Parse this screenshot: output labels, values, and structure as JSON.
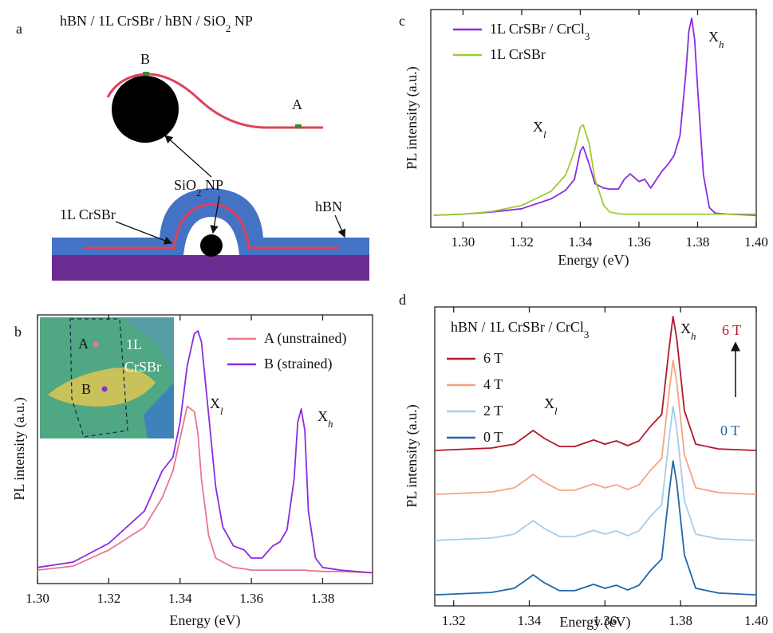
{
  "panel_labels": [
    "a",
    "b",
    "c",
    "d"
  ],
  "diagram": {
    "title": [
      "hBN / 1L CrSBr / hBN / SiO",
      {
        "sub": "2"
      },
      "  NP"
    ],
    "point_b": "B",
    "point_a": "A",
    "np_label": [
      "SiO",
      {
        "sub": "2"
      },
      "  NP"
    ],
    "layer_label": "1L CrSBr",
    "hbn_label": "hBN"
  },
  "chart_data": [
    {
      "type": "line",
      "xlabel": "Energy (eV)",
      "ylabel": "PL intensity (a.u.)",
      "xlim": [
        1.3,
        1.394
      ],
      "ylim": [
        0,
        1
      ],
      "xticks": [
        {
          "value": 1.3,
          "label": "1.30"
        },
        {
          "value": 1.32,
          "label": "1.32"
        },
        {
          "value": 1.34,
          "label": "1.34"
        },
        {
          "value": 1.36,
          "label": "1.36"
        },
        {
          "value": 1.38,
          "label": "1.38"
        }
      ],
      "legend": "upper right",
      "x": [
        1.3,
        1.31,
        1.32,
        1.33,
        1.335,
        1.338,
        1.34,
        1.342,
        1.344,
        1.345,
        1.346,
        1.348,
        1.35,
        1.352,
        1.355,
        1.358,
        1.36,
        1.363,
        1.366,
        1.368,
        1.37,
        1.372,
        1.373,
        1.374,
        1.375,
        1.376,
        1.378,
        1.38,
        1.385,
        1.394
      ],
      "series": [
        {
          "name": "A (unstrained)",
          "color": "#e8788e",
          "values": [
            0.05,
            0.065,
            0.125,
            0.21,
            0.32,
            0.42,
            0.54,
            0.66,
            0.64,
            0.56,
            0.39,
            0.18,
            0.095,
            0.08,
            0.06,
            0.055,
            0.05,
            0.05,
            0.05,
            0.05,
            0.05,
            0.05,
            0.05,
            0.05,
            0.05,
            0.048,
            0.047,
            0.045,
            0.045,
            0.04
          ]
        },
        {
          "name": "B (strained)",
          "color": "#8a2be2",
          "values": [
            0.06,
            0.08,
            0.15,
            0.27,
            0.42,
            0.47,
            0.6,
            0.81,
            0.93,
            0.94,
            0.9,
            0.63,
            0.36,
            0.21,
            0.14,
            0.125,
            0.095,
            0.095,
            0.14,
            0.155,
            0.2,
            0.39,
            0.6,
            0.65,
            0.57,
            0.27,
            0.095,
            0.06,
            0.05,
            0.04
          ]
        }
      ],
      "annotations": [
        [
          "X",
          {
            "sub": "l"
          }
        ],
        [
          "X",
          {
            "sub": "h"
          }
        ]
      ],
      "inset": {
        "labels": [
          "A",
          "B",
          "1L",
          "CrSBr"
        ]
      }
    },
    {
      "type": "line",
      "xlabel": "Energy (eV)",
      "ylabel": "PL intensity (a.u.)",
      "xlim": [
        1.289,
        1.4
      ],
      "ylim": [
        0,
        1
      ],
      "xticks": [
        {
          "value": 1.3,
          "label": "1.30"
        },
        {
          "value": 1.32,
          "label": "1.32"
        },
        {
          "value": 1.34,
          "label": "1.34"
        },
        {
          "value": 1.36,
          "label": "1.36"
        },
        {
          "value": 1.38,
          "label": "1.38"
        },
        {
          "value": 1.4,
          "label": "1.40"
        }
      ],
      "legend": "upper left",
      "x": [
        1.29,
        1.3,
        1.31,
        1.32,
        1.33,
        1.335,
        1.338,
        1.34,
        1.341,
        1.343,
        1.345,
        1.348,
        1.35,
        1.353,
        1.355,
        1.357,
        1.36,
        1.362,
        1.364,
        1.366,
        1.368,
        1.37,
        1.372,
        1.374,
        1.376,
        1.377,
        1.378,
        1.379,
        1.38,
        1.382,
        1.384,
        1.386,
        1.39,
        1.4
      ],
      "series": [
        {
          "name": [
            "1L CrSBr / CrCl",
            {
              "sub": "3"
            }
          ],
          "color": "#8b2be2",
          "values": [
            0.055,
            0.06,
            0.07,
            0.085,
            0.13,
            0.17,
            0.22,
            0.35,
            0.37,
            0.29,
            0.2,
            0.18,
            0.175,
            0.175,
            0.22,
            0.245,
            0.21,
            0.22,
            0.18,
            0.22,
            0.26,
            0.29,
            0.33,
            0.42,
            0.71,
            0.9,
            0.96,
            0.86,
            0.64,
            0.24,
            0.09,
            0.065,
            0.06,
            0.055
          ]
        },
        {
          "name": "1L CrSBr",
          "color": "#9acd32",
          "values": [
            0.055,
            0.06,
            0.073,
            0.1,
            0.165,
            0.24,
            0.35,
            0.46,
            0.47,
            0.385,
            0.22,
            0.1,
            0.07,
            0.062,
            0.06,
            0.06,
            0.06,
            0.06,
            0.06,
            0.06,
            0.06,
            0.06,
            0.06,
            0.06,
            0.06,
            0.06,
            0.06,
            0.06,
            0.06,
            0.06,
            0.06,
            0.06,
            0.06,
            0.06
          ]
        }
      ],
      "annotations": [
        [
          "X",
          {
            "sub": "l"
          }
        ],
        [
          "X",
          {
            "sub": "h"
          }
        ]
      ]
    },
    {
      "type": "line",
      "title": [
        "hBN / 1L CrSBr / CrCl",
        {
          "sub": "3"
        }
      ],
      "xlabel": "Energy (eV)",
      "ylabel": "PL intensity (a.u.)",
      "xlim": [
        1.315,
        1.4
      ],
      "ylim": [
        0,
        1
      ],
      "xticks": [
        {
          "value": 1.32,
          "label": "1.32"
        },
        {
          "value": 1.34,
          "label": "1.34"
        },
        {
          "value": 1.36,
          "label": "1.36"
        },
        {
          "value": 1.38,
          "label": "1.38"
        },
        {
          "value": 1.4,
          "label": "1.40"
        }
      ],
      "legend": "upper left",
      "x": [
        1.315,
        1.33,
        1.336,
        1.339,
        1.341,
        1.344,
        1.348,
        1.352,
        1.357,
        1.36,
        1.363,
        1.366,
        1.369,
        1.372,
        1.375,
        1.377,
        1.378,
        1.379,
        1.381,
        1.384,
        1.39,
        1.4
      ],
      "series": [
        {
          "name": "6 T",
          "color": "#b2182b",
          "values": [
            0.52,
            0.528,
            0.541,
            0.568,
            0.587,
            0.56,
            0.533,
            0.533,
            0.555,
            0.541,
            0.552,
            0.536,
            0.552,
            0.6,
            0.64,
            0.867,
            0.968,
            0.893,
            0.653,
            0.541,
            0.525,
            0.52
          ]
        },
        {
          "name": "4 T",
          "color": "#f4a582",
          "values": [
            0.373,
            0.381,
            0.395,
            0.421,
            0.44,
            0.413,
            0.387,
            0.387,
            0.408,
            0.395,
            0.405,
            0.389,
            0.405,
            0.453,
            0.493,
            0.72,
            0.821,
            0.747,
            0.507,
            0.395,
            0.379,
            0.373
          ]
        },
        {
          "name": "2 T",
          "color": "#a6cde8",
          "values": [
            0.219,
            0.227,
            0.24,
            0.267,
            0.285,
            0.259,
            0.232,
            0.232,
            0.253,
            0.24,
            0.251,
            0.235,
            0.251,
            0.299,
            0.339,
            0.565,
            0.667,
            0.592,
            0.352,
            0.24,
            0.224,
            0.219
          ]
        },
        {
          "name": "0 T",
          "color": "#2166ac",
          "values": [
            0.037,
            0.045,
            0.059,
            0.085,
            0.104,
            0.077,
            0.051,
            0.051,
            0.072,
            0.059,
            0.069,
            0.053,
            0.069,
            0.117,
            0.157,
            0.384,
            0.485,
            0.411,
            0.171,
            0.059,
            0.043,
            0.037
          ]
        }
      ],
      "annotations": [
        [
          "X",
          {
            "sub": "l"
          }
        ],
        [
          "X",
          {
            "sub": "h"
          }
        ]
      ],
      "field_arrow": {
        "top": "6 T",
        "bottom": "0 T",
        "top_color": "#b2182b",
        "bottom_color": "#2166ac"
      }
    }
  ]
}
